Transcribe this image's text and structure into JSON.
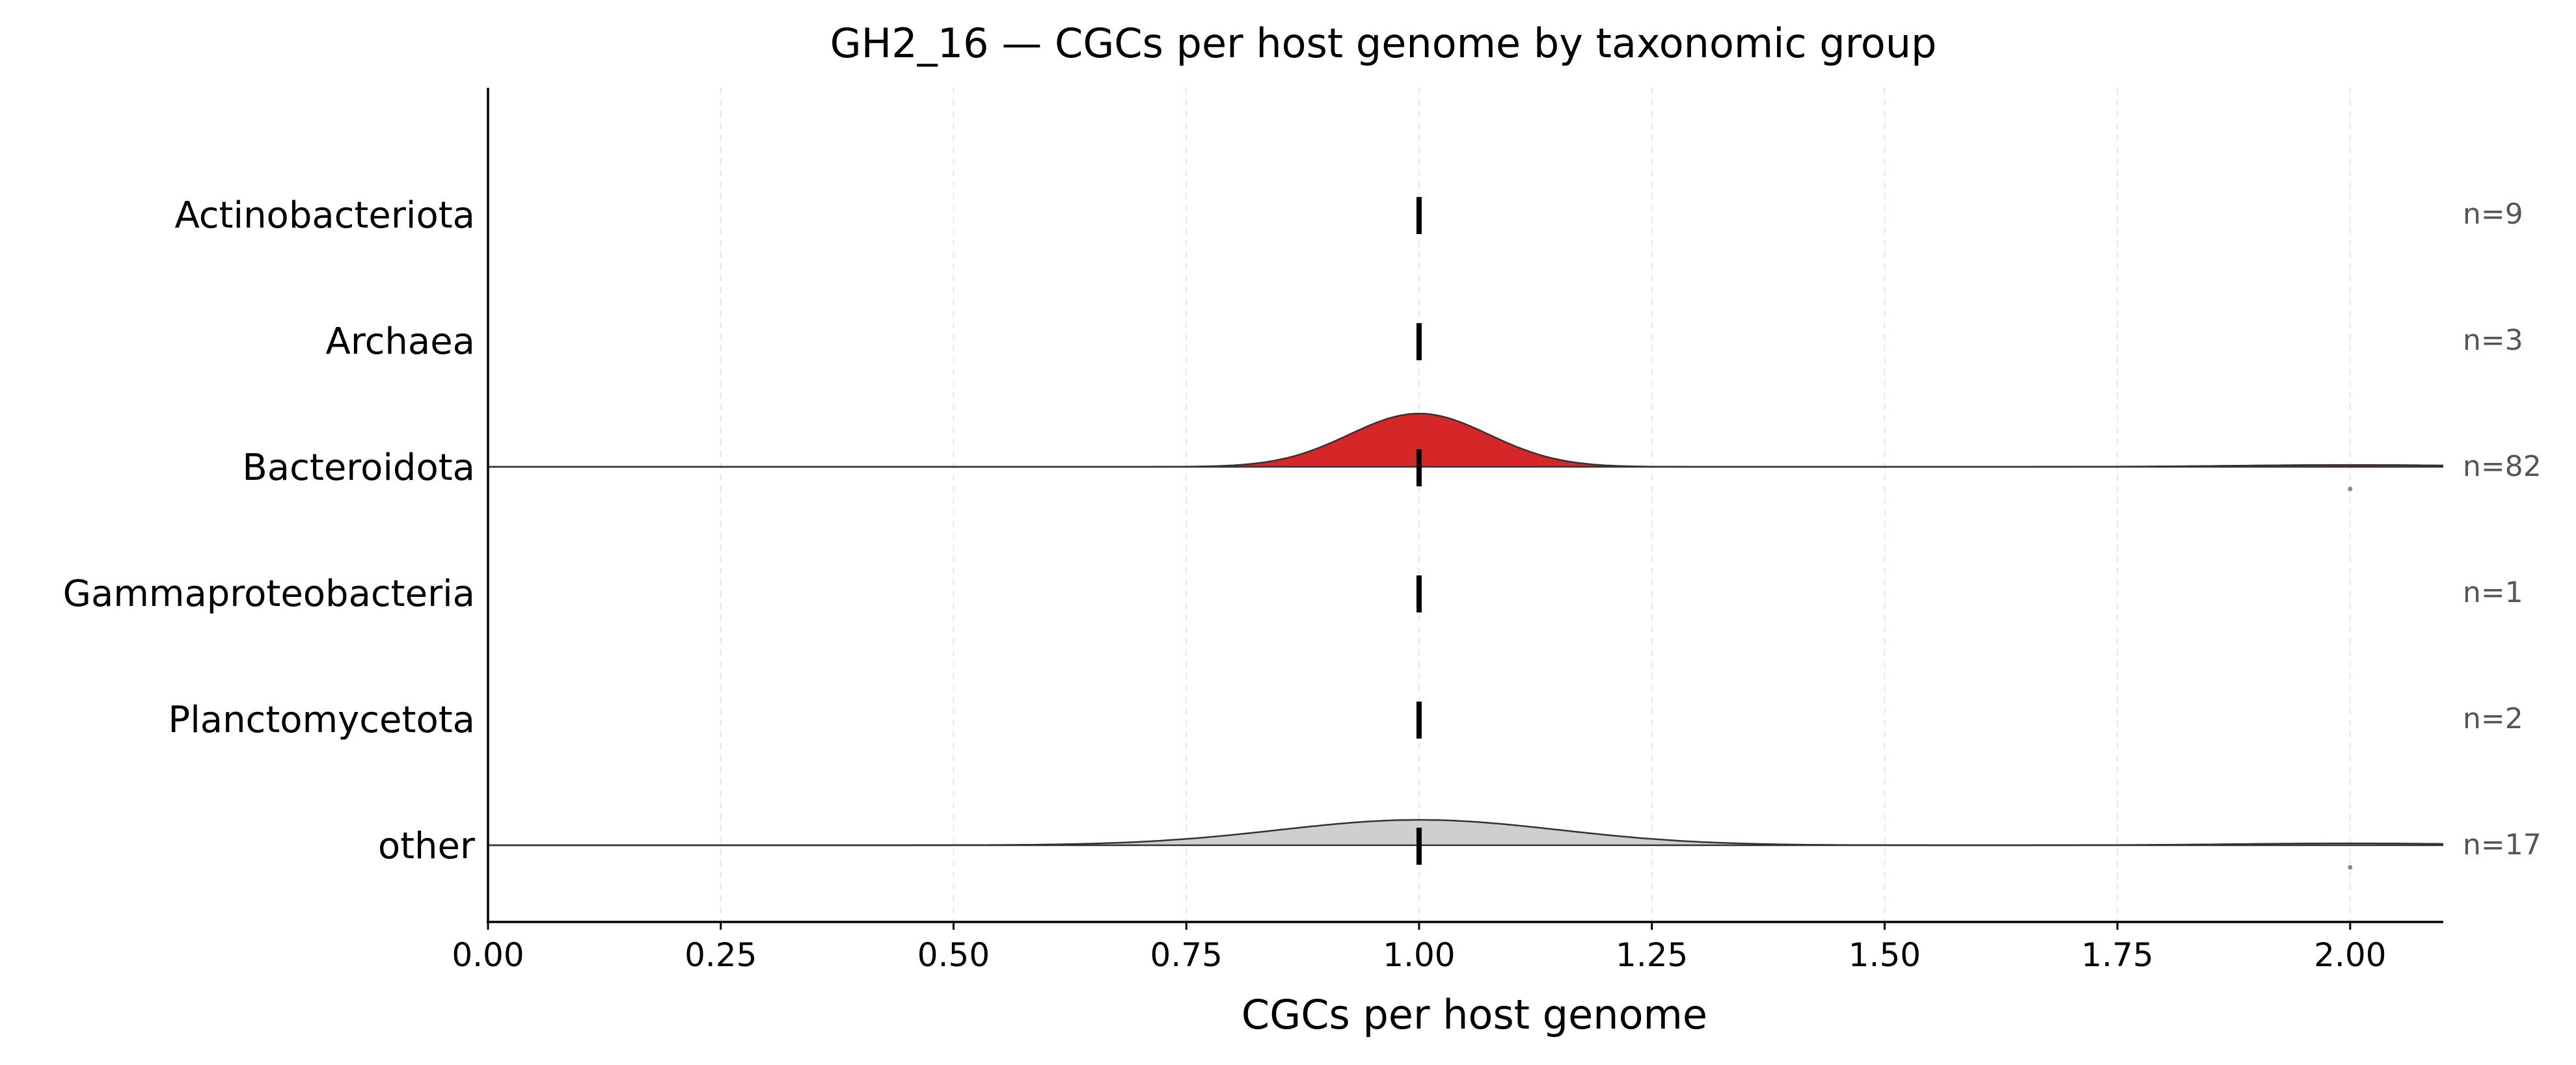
{
  "chart_data": {
    "type": "ridgeline",
    "title": "GH2_16 — CGCs per host genome by taxonomic group",
    "xlabel": "CGCs per host genome",
    "xlim": [
      0,
      2.1
    ],
    "xticks": [
      "0.00",
      "0.25",
      "0.50",
      "0.75",
      "1.00",
      "1.25",
      "1.50",
      "1.75",
      "2.00"
    ],
    "xtick_values": [
      0,
      0.25,
      0.5,
      0.75,
      1.0,
      1.25,
      1.5,
      1.75,
      2.0
    ],
    "grid": "vertical dashed",
    "groups": [
      {
        "label": "Actinobacteriota",
        "n_label": "n=9",
        "median": 1.0,
        "density": null,
        "outliers": [],
        "color": null
      },
      {
        "label": "Archaea",
        "n_label": "n=3",
        "median": 1.0,
        "density": null,
        "outliers": [],
        "color": null
      },
      {
        "label": "Bacteroidota",
        "n_label": "n=82",
        "median": 1.0,
        "density": {
          "peak": 1.0,
          "sd": 0.075,
          "height": 0.42
        },
        "tail": {
          "at": 2.0,
          "height": 0.015
        },
        "outliers": [
          2.0
        ],
        "color": "#d62728"
      },
      {
        "label": "Gammaproteobacteria",
        "n_label": "n=1",
        "median": 1.0,
        "density": null,
        "outliers": [],
        "color": null
      },
      {
        "label": "Planctomycetota",
        "n_label": "n=2",
        "median": 1.0,
        "density": null,
        "outliers": [],
        "color": null
      },
      {
        "label": "other",
        "n_label": "n=17",
        "median": 1.0,
        "density": {
          "peak": 1.0,
          "sd": 0.15,
          "height": 0.2
        },
        "tail": {
          "at": 2.0,
          "height": 0.015
        },
        "outliers": [
          2.0
        ],
        "color": "#cfcfcf"
      }
    ]
  }
}
